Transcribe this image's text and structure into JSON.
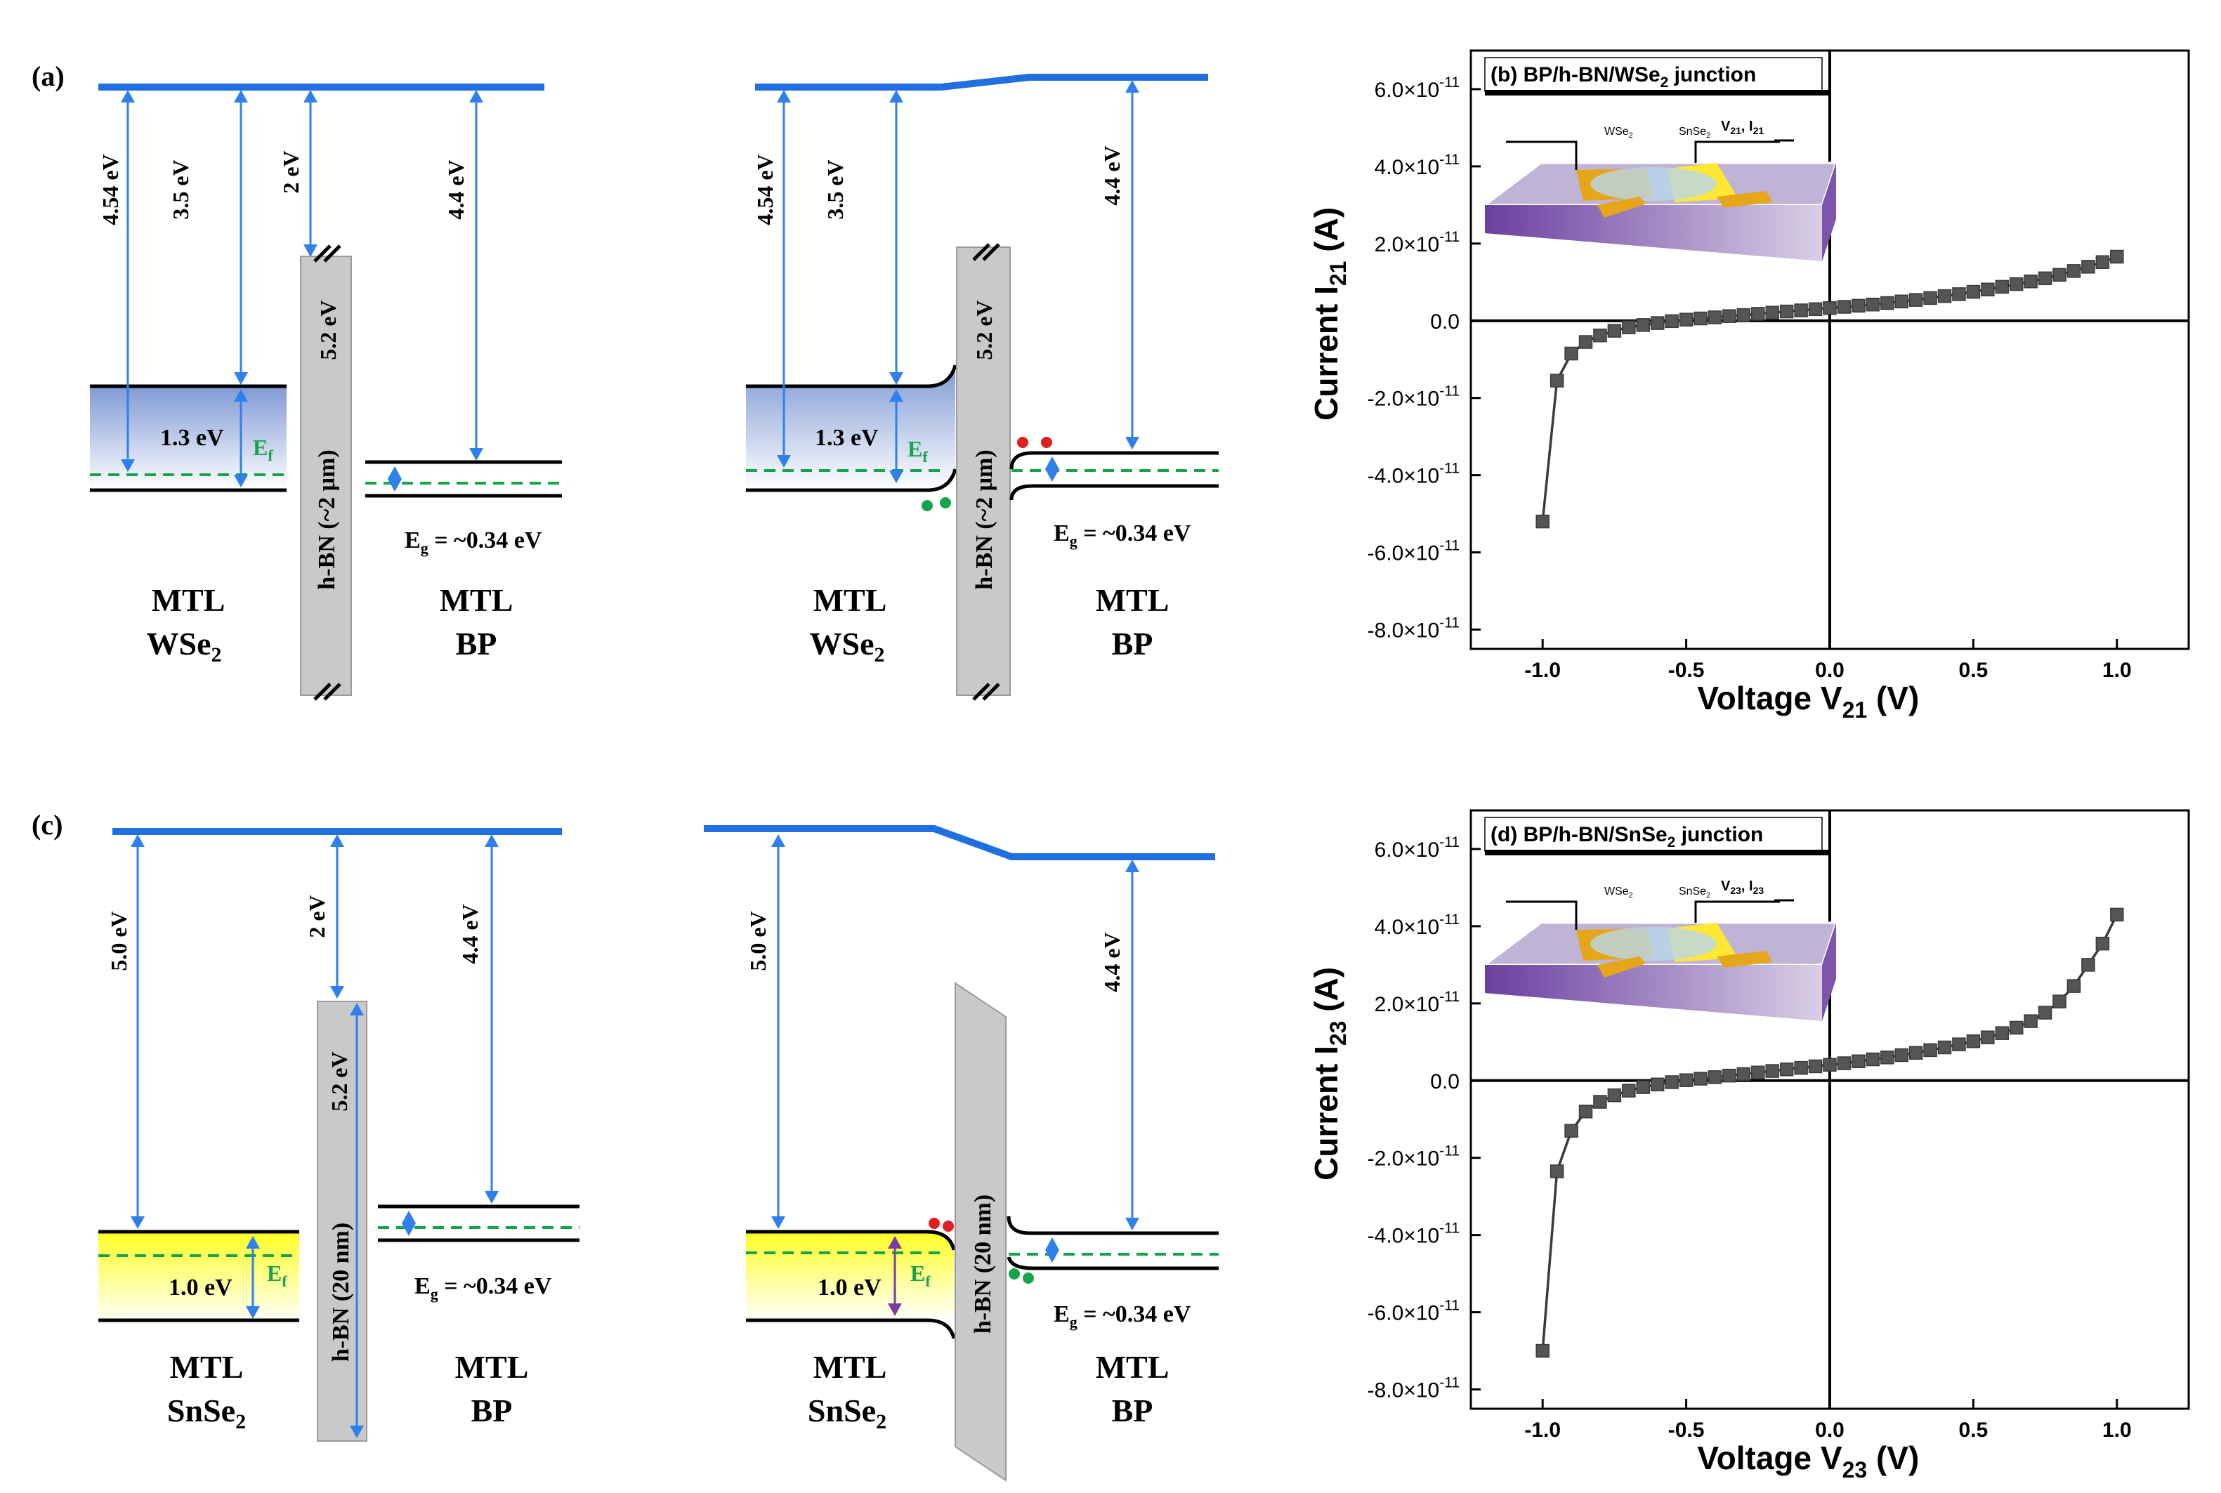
{
  "panels": {
    "a": {
      "label": "(a)",
      "left": {
        "arrows": [
          "4.54 eV",
          "3.5 eV",
          "2 eV",
          "4.4 eV"
        ],
        "hbn": "h-BN (~2 μm)",
        "hbn_gap": "5.2 eV",
        "gap_wse2": "1.3 eV",
        "ef": "E",
        "ef_sub": "f",
        "eg": "E",
        "eg_sub": "g",
        "eg_value": " = ~0.34 eV",
        "mat1_line1": "MTL",
        "mat1_line2": "WSe",
        "mat1_sub": "2",
        "mat2_line1": "MTL",
        "mat2_line2": "BP"
      },
      "right": {
        "arrows": [
          "4.54 eV",
          "3.5 eV",
          "4.4 eV"
        ],
        "hbn": "h-BN (~2 μm)",
        "hbn_gap": "5.2 eV",
        "gap_wse2": "1.3 eV",
        "ef": "E",
        "ef_sub": "f",
        "eg": "E",
        "eg_sub": "g",
        "eg_value": " = ~0.34 eV",
        "mat1_line1": "MTL",
        "mat1_line2": "WSe",
        "mat1_sub": "2",
        "mat2_line1": "MTL",
        "mat2_line2": "BP"
      }
    },
    "c": {
      "label": "(c)",
      "left": {
        "arrows": [
          "5.0 eV",
          "2 eV",
          "4.4 eV"
        ],
        "hbn": "h-BN (20 nm)",
        "hbn_gap": "5.2 eV",
        "gap_snse2": "1.0 eV",
        "ef": "E",
        "ef_sub": "f",
        "eg": "E",
        "eg_sub": "g",
        "eg_value": " = ~0.34 eV",
        "mat1_line1": "MTL",
        "mat1_line2": "SnSe",
        "mat1_sub": "2",
        "mat2_line1": "MTL",
        "mat2_line2": "BP"
      },
      "right": {
        "arrows": [
          "5.0 eV",
          "4.4 eV"
        ],
        "hbn": "h-BN (20 nm)",
        "gap_snse2": "1.0 eV",
        "ef": "E",
        "ef_sub": "f",
        "eg": "E",
        "eg_sub": "g",
        "eg_value": " = ~0.34 eV",
        "mat1_line1": "MTL",
        "mat1_line2": "SnSe",
        "mat1_sub": "2",
        "mat2_line1": "MTL",
        "mat2_line2": "BP"
      }
    }
  },
  "chart_data": [
    {
      "type": "scatter",
      "title_prefix": "(b) BP/h-BN/WSe",
      "title_sub": "2",
      "title_suffix": " junction",
      "xlabel_main": "Voltage V",
      "xlabel_sub": "21",
      "xlabel_unit": " (V)",
      "ylabel_main": "Current I",
      "ylabel_sub": "21",
      "ylabel_unit": " (A)",
      "inset_labels": {
        "left": "WSe",
        "left_sub": "2",
        "right": "SnSe",
        "right_sub": "2",
        "bias": "V",
        "bias_sub": "21",
        "bias_sep": ", I",
        "bias_sub2": "21"
      },
      "xlim": [
        -1.25,
        1.25
      ],
      "ylim": [
        -8.5e-11,
        7e-11
      ],
      "xticks": [
        -1.0,
        -0.5,
        0.0,
        0.5,
        1.0
      ],
      "xtick_labels": [
        "-1.0",
        "-0.5",
        "0.0",
        "0.5",
        "1.0"
      ],
      "yticks": [
        6e-11,
        4e-11,
        2e-11,
        0,
        -2e-11,
        -4e-11,
        -6e-11,
        -8e-11
      ],
      "ytick_labels": [
        {
          "m": "6.0×10",
          "e": "-11"
        },
        {
          "m": "4.0×10",
          "e": "-11"
        },
        {
          "m": "2.0×10",
          "e": "-11"
        },
        {
          "m": "0.0",
          "e": ""
        },
        {
          "m": "-2.0×10",
          "e": "-11"
        },
        {
          "m": "-4.0×10",
          "e": "-11"
        },
        {
          "m": "-6.0×10",
          "e": "-11"
        },
        {
          "m": "-8.0×10",
          "e": "-11"
        }
      ],
      "points": {
        "x": [
          -1.0,
          -0.95,
          -0.9,
          -0.85,
          -0.8,
          -0.75,
          -0.7,
          -0.65,
          -0.6,
          -0.55,
          -0.5,
          -0.45,
          -0.4,
          -0.35,
          -0.3,
          -0.25,
          -0.2,
          -0.15,
          -0.1,
          -0.05,
          0.0,
          0.05,
          0.1,
          0.15,
          0.2,
          0.25,
          0.3,
          0.35,
          0.4,
          0.45,
          0.5,
          0.55,
          0.6,
          0.65,
          0.7,
          0.75,
          0.8,
          0.85,
          0.9,
          0.95,
          1.0
        ],
        "y": [
          -5.2e-11,
          -1.55e-11,
          -8.5e-12,
          -5.5e-12,
          -3.8e-12,
          -2.6e-12,
          -1.7e-12,
          -1.1e-12,
          -6e-13,
          -1e-13,
          3e-13,
          6e-13,
          9e-13,
          1.2e-12,
          1.5e-12,
          1.8e-12,
          2.1e-12,
          2.4e-12,
          2.7e-12,
          3e-12,
          3.3e-12,
          3.6e-12,
          3.9e-12,
          4.2e-12,
          4.6e-12,
          5e-12,
          5.4e-12,
          5.9e-12,
          6.4e-12,
          6.9e-12,
          7.5e-12,
          8.1e-12,
          8.8e-12,
          9.5e-12,
          1.02e-11,
          1.1e-11,
          1.19e-11,
          1.29e-11,
          1.4e-11,
          1.52e-11,
          1.66e-11
        ]
      }
    },
    {
      "type": "scatter",
      "title_prefix": "(d) BP/h-BN/SnSe",
      "title_sub": "2",
      "title_suffix": " junction",
      "xlabel_main": "Voltage V",
      "xlabel_sub": "23",
      "xlabel_unit": " (V)",
      "ylabel_main": "Current I",
      "ylabel_sub": "23",
      "ylabel_unit": " (A)",
      "inset_labels": {
        "left": "WSe",
        "left_sub": "2",
        "right": "SnSe",
        "right_sub": "2",
        "bias": "V",
        "bias_sub": "23",
        "bias_sep": ", I",
        "bias_sub2": "23"
      },
      "xlim": [
        -1.25,
        1.25
      ],
      "ylim": [
        -8.5e-11,
        7e-11
      ],
      "xticks": [
        -1.0,
        -0.5,
        0.0,
        0.5,
        1.0
      ],
      "xtick_labels": [
        "-1.0",
        "-0.5",
        "0.0",
        "0.5",
        "1.0"
      ],
      "yticks": [
        6e-11,
        4e-11,
        2e-11,
        0,
        -2e-11,
        -4e-11,
        -6e-11,
        -8e-11
      ],
      "ytick_labels": [
        {
          "m": "6.0×10",
          "e": "-11"
        },
        {
          "m": "4.0×10",
          "e": "-11"
        },
        {
          "m": "2.0×10",
          "e": "-11"
        },
        {
          "m": "0.0",
          "e": ""
        },
        {
          "m": "-2.0×10",
          "e": "-11"
        },
        {
          "m": "-4.0×10",
          "e": "-11"
        },
        {
          "m": "-6.0×10",
          "e": "-11"
        },
        {
          "m": "-8.0×10",
          "e": "-11"
        }
      ],
      "points": {
        "x": [
          -1.0,
          -0.95,
          -0.9,
          -0.85,
          -0.8,
          -0.75,
          -0.7,
          -0.65,
          -0.6,
          -0.55,
          -0.5,
          -0.45,
          -0.4,
          -0.35,
          -0.3,
          -0.25,
          -0.2,
          -0.15,
          -0.1,
          -0.05,
          0.0,
          0.05,
          0.1,
          0.15,
          0.2,
          0.25,
          0.3,
          0.35,
          0.4,
          0.45,
          0.5,
          0.55,
          0.6,
          0.65,
          0.7,
          0.75,
          0.8,
          0.85,
          0.9,
          0.95,
          1.0
        ],
        "y": [
          -7e-11,
          -2.35e-11,
          -1.3e-11,
          -8e-12,
          -5.5e-12,
          -3.8e-12,
          -2.6e-12,
          -1.7e-12,
          -1e-12,
          -4e-13,
          1e-13,
          5e-13,
          9e-13,
          1.3e-12,
          1.7e-12,
          2.1e-12,
          2.5e-12,
          2.9e-12,
          3.3e-12,
          3.7e-12,
          4.1e-12,
          4.5e-12,
          5e-12,
          5.5e-12,
          6e-12,
          6.6e-12,
          7.2e-12,
          7.9e-12,
          8.6e-12,
          9.4e-12,
          1.02e-11,
          1.12e-11,
          1.23e-11,
          1.37e-11,
          1.54e-11,
          1.76e-11,
          2.05e-11,
          2.45e-11,
          3e-11,
          3.55e-11,
          4.3e-11
        ]
      }
    }
  ],
  "colors": {
    "vacuum": "#1f6fe0",
    "arrow": "#2f80ed",
    "fermi": "#16a34a",
    "hbn": "#c9c9c9",
    "wse2_fill": "#8fa8d8",
    "snse2_fill": "#ffff33",
    "marker": "#555555",
    "electron": "#e02020",
    "hole": "#16a34a",
    "purple_arrow": "#7a3ea0"
  }
}
